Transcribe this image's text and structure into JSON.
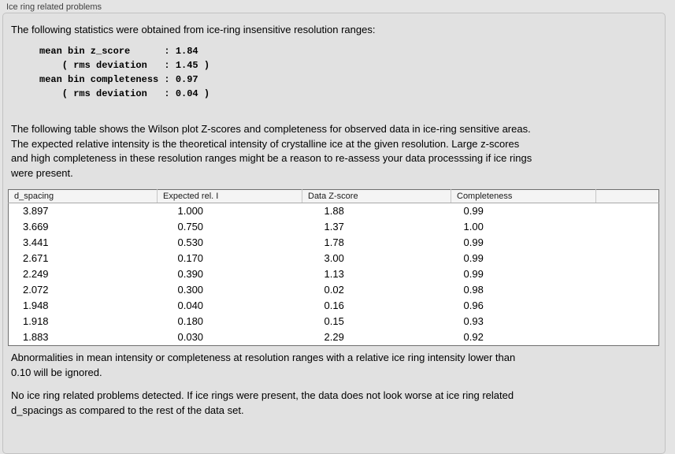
{
  "panel": {
    "title": "Ice ring related problems"
  },
  "intro": "The following statistics were obtained from ice-ring insensitive resolution ranges:",
  "stats_block": "mean bin z_score      : 1.84\n    ( rms deviation   : 1.45 )\nmean bin completeness : 0.97\n    ( rms deviation   : 0.04 )",
  "table_description": "The following table shows the Wilson plot Z-scores and completeness for observed data in ice-ring sensitive areas.\nThe expected relative intensity is the theoretical intensity of crystalline ice at the given resolution. Large z-scores\nand high completeness in these resolution ranges might be a reason to re-assess your data processsing if ice rings\nwere present.",
  "table": {
    "headers": [
      "d_spacing",
      "Expected rel. I",
      "Data Z-score",
      "Completeness"
    ],
    "rows": [
      [
        "3.897",
        "1.000",
        "1.88",
        "0.99"
      ],
      [
        "3.669",
        "0.750",
        "1.37",
        "1.00"
      ],
      [
        "3.441",
        "0.530",
        "1.78",
        "0.99"
      ],
      [
        "2.671",
        "0.170",
        "3.00",
        "0.99"
      ],
      [
        "2.249",
        "0.390",
        "1.13",
        "0.99"
      ],
      [
        "2.072",
        "0.300",
        "0.02",
        "0.98"
      ],
      [
        "1.948",
        "0.040",
        "0.16",
        "0.96"
      ],
      [
        "1.918",
        "0.180",
        "0.15",
        "0.93"
      ],
      [
        "1.883",
        "0.030",
        "2.29",
        "0.92"
      ]
    ]
  },
  "ignore_note": "Abnormalities in mean intensity or completeness at resolution ranges with a relative ice ring intensity lower than\n0.10 will be ignored.",
  "conclusion": "No ice ring related problems detected. If ice rings were present, the data does not look worse at ice ring related\nd_spacings as compared to the rest of the data set.",
  "colors": {
    "page_bg": "#e4e4e4",
    "box_bg": "#e1e1e1",
    "box_border": "#c2c2c2",
    "table_border": "#6f6f6f",
    "header_bg": "#f4f4f4"
  }
}
